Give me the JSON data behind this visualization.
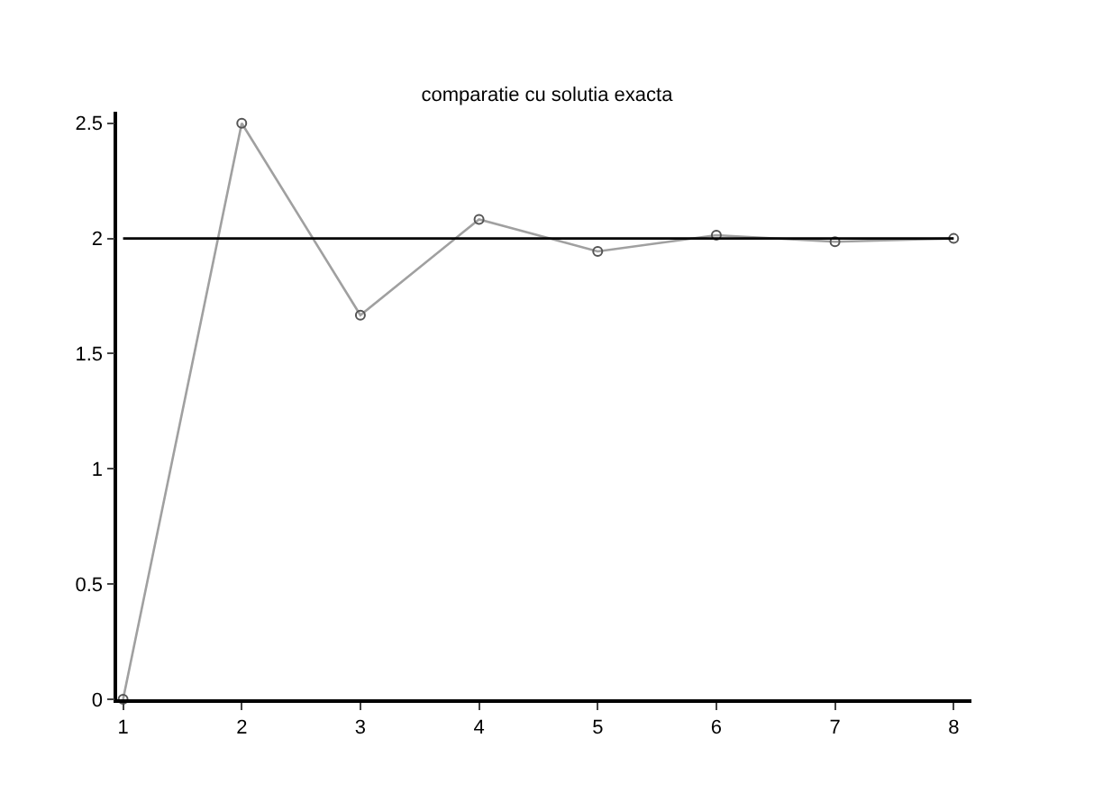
{
  "chart_data": {
    "type": "line",
    "title": "comparatie cu solutia exacta",
    "x": [
      1,
      2,
      3,
      4,
      5,
      6,
      7,
      8
    ],
    "series": [
      {
        "color": "#a0a0a0",
        "values": [
          0,
          2.5,
          1.667,
          2.083,
          1.944,
          2.014,
          1.986,
          2.0
        ],
        "marker": "circle"
      },
      {
        "color": "#000000",
        "x": [
          1,
          8
        ],
        "values": [
          2,
          2
        ],
        "marker": "none"
      }
    ],
    "xlim": [
      0.95,
      8.15
    ],
    "xticks": [
      1,
      2,
      3,
      4,
      5,
      6,
      7,
      8
    ],
    "ylim": [
      0,
      2.55
    ],
    "yticks": [
      0,
      0.5,
      1,
      1.5,
      2,
      2.5
    ]
  }
}
